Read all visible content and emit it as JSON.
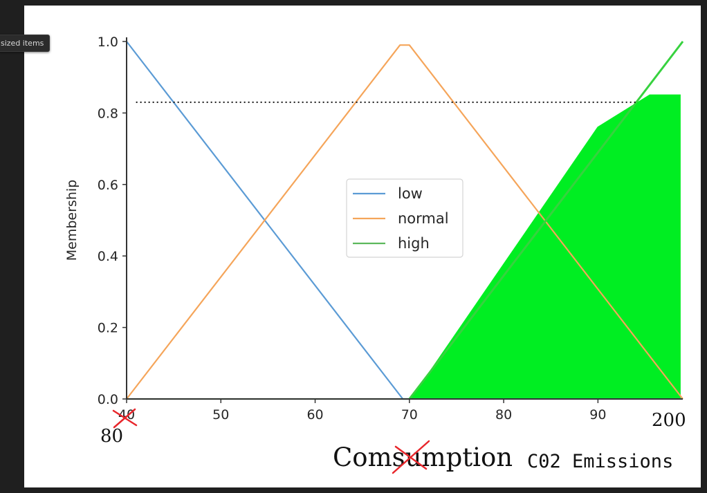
{
  "tooltip": {
    "text": "sized items"
  },
  "chart_data": {
    "type": "line",
    "ylabel": "Membership",
    "xlim": [
      40,
      99
    ],
    "ylim": [
      0,
      1.0
    ],
    "x_ticks": [
      40,
      50,
      60,
      70,
      80,
      90
    ],
    "x_tick_labels": [
      "40",
      "50",
      "60",
      "70",
      "80",
      "90"
    ],
    "y_ticks": [
      0.0,
      0.2,
      0.4,
      0.6,
      0.8,
      1.0
    ],
    "y_tick_labels": [
      "0.0",
      "0.2",
      "0.4",
      "0.6",
      "0.8",
      "1.0"
    ],
    "legend_position": "center",
    "series": [
      {
        "name": "low",
        "color": "#5b9bd5",
        "x": [
          40,
          69.3,
          99
        ],
        "y": [
          1.0,
          0.0,
          0.0
        ]
      },
      {
        "name": "normal",
        "color": "#f5a55a",
        "x": [
          40,
          69,
          70,
          99
        ],
        "y": [
          0.0,
          0.99,
          0.99,
          0.0
        ]
      },
      {
        "name": "high",
        "color": "#5cb85c",
        "x": [
          40,
          70,
          99
        ],
        "y": [
          0.0,
          0.0,
          1.0
        ]
      }
    ],
    "threshold_line": {
      "y": 0.83,
      "x": [
        41,
        94
      ],
      "style": "dotted",
      "color": "#111111"
    },
    "filled_region": {
      "color": "#00ee22",
      "points": [
        [
          70.2,
          0
        ],
        [
          90,
          0.76
        ],
        [
          95.5,
          0.85
        ],
        [
          98.7,
          0.85
        ],
        [
          98.7,
          0
        ]
      ]
    },
    "annotations": {
      "crossed_x_tick": "40",
      "replacement_x_min": "80",
      "replacement_x_max": "200",
      "handwritten_title": "Comsumption",
      "crossed_fragment": "su",
      "replacement_title": "C02 Emissions",
      "strike_color": "#e8262b"
    }
  }
}
